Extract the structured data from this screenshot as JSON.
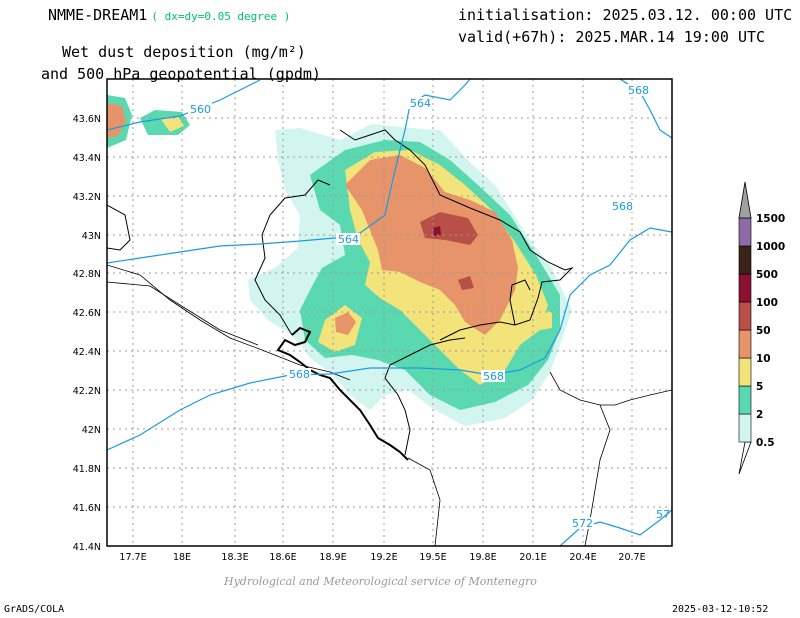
{
  "header": {
    "model_name": "NMME-DREAM1",
    "resolution_note": "( dx=dy=0.05 degree )",
    "initialisation": "initialisation: 2025.03.12. 00:00 UTC",
    "valid": "valid(+67h): 2025.MAR.14 19:00 UTC",
    "title_line1": "Wet dust deposition (mg/m²)",
    "title_line2": "and 500 hPa geopotential (gpdm)"
  },
  "footer": {
    "credit": "Hydrological and Meteorological service of Montenegro",
    "software": "GrADS/COLA",
    "timestamp": "2025-03-12-10:52"
  },
  "map": {
    "lon_range": [
      17.5,
      21.0
    ],
    "lat_range": [
      41.4,
      43.8
    ],
    "lon_ticks": [
      "17.7E",
      "18E",
      "18.3E",
      "18.6E",
      "18.9E",
      "19.2E",
      "19.5E",
      "19.8E",
      "20.1E",
      "20.4E",
      "20.7E"
    ],
    "lat_ticks": [
      "43.6N",
      "43.4N",
      "43.2N",
      "43N",
      "42.8N",
      "42.6N",
      "42.4N",
      "42.2N",
      "42N",
      "41.8N",
      "41.6N",
      "41.4N"
    ],
    "grid": true,
    "geopotential_labels": [
      "560",
      "564",
      "564",
      "568",
      "568",
      "568",
      "568",
      "572",
      "57"
    ],
    "isoline_color": "#1a9be0"
  },
  "colorbar": {
    "levels": [
      "0.5",
      "2",
      "5",
      "10",
      "50",
      "100",
      "500",
      "1000",
      "1500"
    ],
    "colors": [
      "#d2f5f0",
      "#5ad9b0",
      "#f2e37a",
      "#e8946a",
      "#b85048",
      "#8c1030",
      "#3a2418",
      "#8e6ba6",
      "#a0a0a0"
    ]
  }
}
